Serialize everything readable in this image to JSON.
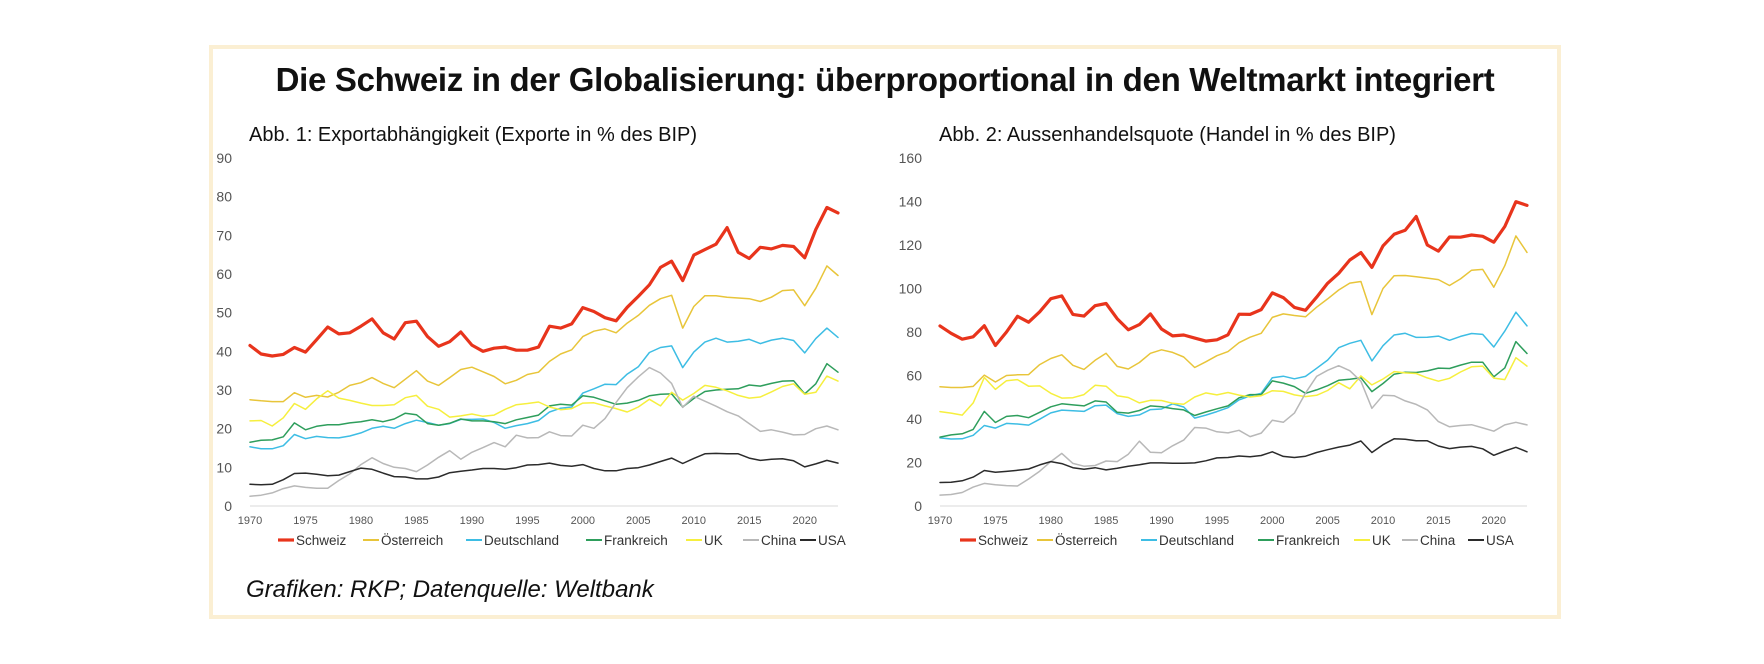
{
  "title": "Die Schweiz in der Globalisierung: überproportional in den Weltmarkt integriert",
  "footer": "Grafiken: RKP; Datenquelle: Weltbank",
  "chart_data": [
    {
      "type": "line",
      "title": "Abb. 1: Exportabhängigkeit (Exporte in % des BIP)",
      "xlabel": "",
      "ylabel": "",
      "x": [
        1970,
        1971,
        1972,
        1973,
        1974,
        1975,
        1976,
        1977,
        1978,
        1979,
        1980,
        1981,
        1982,
        1983,
        1984,
        1985,
        1986,
        1987,
        1988,
        1989,
        1990,
        1991,
        1992,
        1993,
        1994,
        1995,
        1996,
        1997,
        1998,
        1999,
        2000,
        2001,
        2002,
        2003,
        2004,
        2005,
        2006,
        2007,
        2008,
        2009,
        2010,
        2011,
        2012,
        2013,
        2014,
        2015,
        2016,
        2017,
        2018,
        2019,
        2020,
        2021,
        2022,
        2023
      ],
      "xticks": [
        "1970",
        "1975",
        "1980",
        "1985",
        "1990",
        "1995",
        "2000",
        "2005",
        "2010",
        "2015",
        "2020"
      ],
      "ylim": [
        0,
        90
      ],
      "yticks": [
        "0",
        "10",
        "20",
        "30",
        "40",
        "50",
        "60",
        "70",
        "80",
        "90"
      ],
      "legend_position": "bottom",
      "grid": false,
      "series": [
        {
          "name": "Schweiz",
          "color": "#e8341c",
          "width": 3.2,
          "values": [
            41.5,
            39.3,
            38.8,
            39.2,
            41.0,
            39.8,
            43.0,
            46.3,
            44.5,
            44.8,
            46.5,
            48.4,
            44.8,
            43.2,
            47.4,
            47.8,
            43.8,
            41.3,
            42.5,
            45.0,
            41.6,
            40.0,
            40.8,
            41.1,
            40.3,
            40.3,
            41.1,
            46.5,
            46.0,
            47.1,
            51.3,
            50.3,
            48.7,
            47.9,
            51.4,
            54.2,
            57.2,
            61.7,
            63.3,
            58.3,
            64.9,
            66.3,
            67.7,
            72.0,
            65.6,
            64.0,
            66.9,
            66.5,
            67.4,
            67.1,
            64.2,
            71.5,
            77.2,
            75.8
          ]
        },
        {
          "name": "Österreich",
          "color": "#e8c53a",
          "width": 1.5,
          "values": [
            27.5,
            27.2,
            27.0,
            27.0,
            29.3,
            28.1,
            28.6,
            28.2,
            29.4,
            31.2,
            31.9,
            33.2,
            31.7,
            30.6,
            32.8,
            35.0,
            32.3,
            31.2,
            33.2,
            35.3,
            35.9,
            34.7,
            33.5,
            31.6,
            32.5,
            34.0,
            34.6,
            37.4,
            39.3,
            40.4,
            43.8,
            45.2,
            45.8,
            44.8,
            47.3,
            49.3,
            51.9,
            53.6,
            54.5,
            46.0,
            51.6,
            54.4,
            54.4,
            54.0,
            53.8,
            53.6,
            52.9,
            54.0,
            55.7,
            55.9,
            51.8,
            56.3,
            62.1,
            59.6
          ]
        },
        {
          "name": "Deutschland",
          "color": "#3dbde4",
          "width": 1.5,
          "values": [
            15.3,
            14.8,
            14.8,
            15.6,
            18.5,
            17.4,
            18.0,
            17.7,
            17.6,
            18.1,
            18.9,
            20.1,
            20.6,
            20.1,
            21.3,
            22.2,
            21.6,
            20.9,
            21.3,
            22.4,
            22.4,
            22.5,
            21.6,
            20.1,
            20.8,
            21.3,
            22.1,
            24.3,
            25.3,
            25.6,
            29.2,
            30.3,
            31.5,
            31.4,
            34.1,
            36.0,
            39.7,
            41.0,
            41.4,
            35.8,
            39.8,
            42.4,
            43.4,
            42.4,
            42.6,
            43.1,
            42.0,
            42.9,
            43.4,
            42.8,
            39.6,
            43.3,
            46.0,
            43.6
          ]
        },
        {
          "name": "Frankreich",
          "color": "#2e9e5c",
          "width": 1.5,
          "values": [
            16.5,
            17.0,
            17.1,
            17.9,
            21.5,
            19.7,
            20.6,
            21.0,
            21.0,
            21.5,
            21.8,
            22.3,
            21.8,
            22.5,
            24.0,
            23.6,
            21.3,
            20.9,
            21.4,
            22.5,
            22.0,
            22.0,
            21.8,
            21.3,
            22.3,
            22.9,
            23.5,
            25.9,
            26.3,
            26.1,
            28.5,
            28.1,
            27.2,
            26.3,
            26.6,
            27.3,
            28.5,
            28.9,
            29.0,
            25.6,
            27.8,
            29.6,
            30.0,
            30.2,
            30.3,
            31.3,
            31.0,
            31.7,
            32.3,
            32.4,
            29.0,
            31.6,
            36.8,
            34.6
          ]
        },
        {
          "name": "UK",
          "color": "#f6ef3e",
          "width": 1.5,
          "values": [
            22.0,
            22.1,
            20.7,
            22.8,
            26.5,
            25.0,
            27.7,
            29.8,
            27.9,
            27.3,
            26.6,
            26.0,
            26.0,
            26.2,
            28.0,
            28.6,
            25.8,
            25.0,
            23.0,
            23.3,
            23.8,
            23.2,
            23.5,
            25.0,
            26.2,
            26.5,
            26.9,
            25.6,
            24.9,
            25.2,
            26.6,
            26.7,
            25.9,
            25.2,
            24.3,
            25.6,
            27.6,
            25.9,
            29.4,
            27.4,
            29.1,
            31.2,
            30.7,
            29.8,
            28.6,
            27.9,
            28.2,
            29.5,
            30.9,
            31.6,
            28.9,
            29.4,
            33.6,
            32.3
          ]
        },
        {
          "name": "China",
          "color": "#b8b8b8",
          "width": 1.5,
          "values": [
            2.5,
            2.8,
            3.4,
            4.5,
            5.2,
            4.8,
            4.6,
            4.6,
            6.6,
            8.3,
            10.7,
            12.5,
            11.0,
            10.0,
            9.7,
            8.9,
            10.6,
            12.6,
            14.3,
            12.1,
            13.9,
            15.1,
            16.4,
            15.3,
            18.3,
            17.6,
            17.7,
            19.2,
            18.2,
            18.1,
            20.9,
            20.1,
            22.6,
            26.8,
            30.6,
            33.4,
            35.8,
            34.4,
            31.7,
            25.5,
            28.4,
            27.1,
            25.8,
            24.4,
            23.3,
            21.3,
            19.3,
            19.7,
            19.1,
            18.4,
            18.5,
            20.0,
            20.7,
            19.7
          ]
        },
        {
          "name": "USA",
          "color": "#2b2b2b",
          "width": 1.5,
          "values": [
            5.6,
            5.5,
            5.6,
            6.8,
            8.4,
            8.5,
            8.2,
            7.8,
            8.0,
            8.9,
            9.8,
            9.5,
            8.5,
            7.6,
            7.5,
            7.0,
            7.0,
            7.5,
            8.6,
            9.0,
            9.3,
            9.7,
            9.7,
            9.5,
            9.9,
            10.6,
            10.7,
            11.1,
            10.5,
            10.3,
            10.7,
            9.7,
            9.1,
            9.1,
            9.7,
            9.9,
            10.6,
            11.5,
            12.4,
            11.0,
            12.3,
            13.5,
            13.6,
            13.5,
            13.5,
            12.4,
            11.8,
            12.1,
            12.2,
            11.7,
            10.1,
            10.9,
            11.8,
            11.1
          ]
        }
      ]
    },
    {
      "type": "line",
      "title": "Abb. 2: Aussenhandelsquote (Handel in % des BIP)",
      "xlabel": "",
      "ylabel": "",
      "x": [
        1970,
        1971,
        1972,
        1973,
        1974,
        1975,
        1976,
        1977,
        1978,
        1979,
        1980,
        1981,
        1982,
        1983,
        1984,
        1985,
        1986,
        1987,
        1988,
        1989,
        1990,
        1991,
        1992,
        1993,
        1994,
        1995,
        1996,
        1997,
        1998,
        1999,
        2000,
        2001,
        2002,
        2003,
        2004,
        2005,
        2006,
        2007,
        2008,
        2009,
        2010,
        2011,
        2012,
        2013,
        2014,
        2015,
        2016,
        2017,
        2018,
        2019,
        2020,
        2021,
        2022,
        2023
      ],
      "xticks": [
        "1970",
        "1975",
        "1980",
        "1985",
        "1990",
        "1995",
        "2000",
        "2005",
        "2010",
        "2015",
        "2020"
      ],
      "ylim": [
        0,
        160
      ],
      "yticks": [
        "0",
        "20",
        "40",
        "60",
        "80",
        "100",
        "120",
        "140",
        "160"
      ],
      "legend_position": "bottom",
      "grid": false,
      "series": [
        {
          "name": "Schweiz",
          "color": "#e8341c",
          "width": 3.2,
          "values": [
            82.8,
            79.4,
            76.7,
            77.8,
            82.9,
            73.8,
            80.0,
            87.2,
            84.5,
            89.3,
            95.3,
            96.6,
            88.1,
            87.3,
            92.1,
            93.1,
            86.1,
            81.0,
            83.4,
            88.3,
            81.4,
            78.2,
            78.6,
            77.2,
            75.8,
            76.4,
            78.7,
            88.2,
            88.1,
            90.3,
            98.0,
            95.8,
            91.3,
            90.0,
            96.0,
            102.4,
            107.0,
            113.1,
            116.5,
            109.7,
            119.6,
            124.9,
            126.8,
            133.1,
            120.0,
            117.2,
            123.7,
            123.6,
            124.6,
            124.0,
            121.3,
            128.5,
            139.9,
            138.2
          ]
        },
        {
          "name": "Österreich",
          "color": "#e8c53a",
          "width": 1.5,
          "values": [
            54.8,
            54.5,
            54.5,
            55.0,
            60.2,
            57.0,
            60.0,
            60.3,
            60.4,
            65.0,
            67.8,
            69.5,
            64.7,
            62.8,
            67.0,
            70.2,
            64.2,
            63.0,
            66.0,
            70.2,
            71.8,
            70.6,
            68.5,
            63.7,
            66.3,
            69.1,
            71.0,
            75.1,
            77.6,
            79.4,
            86.7,
            88.3,
            87.6,
            87.0,
            91.4,
            95.2,
            99.3,
            102.5,
            103.2,
            88.0,
            100.0,
            105.9,
            106.0,
            105.4,
            104.8,
            104.1,
            101.4,
            104.4,
            108.4,
            108.8,
            100.6,
            110.5,
            124.2,
            116.6
          ]
        },
        {
          "name": "Deutschland",
          "color": "#3dbde4",
          "width": 1.5,
          "values": [
            31.3,
            30.8,
            30.9,
            32.5,
            37.0,
            35.8,
            38.0,
            37.7,
            37.2,
            39.9,
            42.8,
            44.1,
            43.8,
            43.5,
            46.1,
            46.4,
            42.5,
            41.2,
            41.9,
            44.3,
            44.6,
            47.0,
            45.5,
            40.4,
            41.8,
            43.4,
            45.2,
            48.8,
            50.6,
            51.8,
            59.0,
            59.7,
            58.5,
            59.6,
            63.3,
            67.1,
            72.8,
            74.8,
            76.2,
            66.7,
            73.7,
            78.6,
            79.4,
            77.5,
            77.6,
            78.1,
            76.2,
            78.0,
            79.3,
            78.9,
            73.1,
            80.4,
            89.1,
            82.8
          ]
        },
        {
          "name": "Frankreich",
          "color": "#2e9e5c",
          "width": 1.5,
          "values": [
            31.7,
            32.7,
            33.2,
            35.2,
            43.5,
            38.4,
            41.2,
            41.6,
            40.6,
            43.1,
            45.6,
            47.0,
            46.5,
            46.0,
            48.3,
            47.8,
            43.1,
            42.7,
            43.9,
            46.0,
            45.6,
            44.8,
            44.2,
            41.6,
            43.2,
            44.7,
            46.0,
            49.7,
            51.2,
            51.2,
            57.5,
            56.5,
            54.9,
            51.8,
            53.4,
            55.3,
            57.8,
            58.3,
            59.0,
            52.6,
            56.3,
            60.6,
            61.5,
            61.4,
            62.1,
            63.4,
            63.2,
            64.8,
            66.1,
            66.1,
            59.4,
            63.5,
            75.6,
            70.1
          ]
        },
        {
          "name": "UK",
          "color": "#f6ef3e",
          "width": 1.5,
          "values": [
            43.4,
            42.7,
            41.8,
            47.4,
            59.1,
            53.6,
            57.6,
            58.1,
            55.1,
            55.2,
            51.8,
            49.6,
            49.8,
            51.2,
            55.5,
            55.1,
            50.7,
            49.9,
            47.4,
            48.6,
            48.5,
            47.2,
            46.8,
            50.1,
            52.0,
            51.1,
            52.2,
            51.0,
            50.1,
            50.7,
            53.0,
            52.7,
            51.1,
            50.3,
            50.9,
            53.1,
            56.7,
            53.9,
            59.8,
            55.7,
            58.4,
            61.8,
            61.2,
            60.9,
            58.9,
            57.4,
            58.7,
            61.6,
            64.0,
            64.3,
            58.8,
            58.1,
            68.2,
            64.3
          ]
        },
        {
          "name": "China",
          "color": "#b8b8b8",
          "width": 1.5,
          "values": [
            5.0,
            5.3,
            6.2,
            8.7,
            10.4,
            9.8,
            9.4,
            9.2,
            12.4,
            16.0,
            20.4,
            24.2,
            19.6,
            18.3,
            18.6,
            20.7,
            20.4,
            23.8,
            29.8,
            24.7,
            24.5,
            27.7,
            30.3,
            36.1,
            35.8,
            34.1,
            33.6,
            34.8,
            31.9,
            33.5,
            39.4,
            38.5,
            42.7,
            51.9,
            59.6,
            62.4,
            64.5,
            62.2,
            57.4,
            44.9,
            50.9,
            50.7,
            48.3,
            46.7,
            44.2,
            38.8,
            36.4,
            37.0,
            37.4,
            35.9,
            34.4,
            37.3,
            38.5,
            37.3
          ]
        },
        {
          "name": "USA",
          "color": "#2b2b2b",
          "width": 1.5,
          "values": [
            10.8,
            10.9,
            11.6,
            13.3,
            16.3,
            15.5,
            15.9,
            16.4,
            17.0,
            18.9,
            20.4,
            19.5,
            17.6,
            16.9,
            17.6,
            16.6,
            17.4,
            18.3,
            19.0,
            19.8,
            19.8,
            19.7,
            19.7,
            19.8,
            20.8,
            22.1,
            22.3,
            23.0,
            22.6,
            23.2,
            24.9,
            22.8,
            22.3,
            22.9,
            24.6,
            25.9,
            27.1,
            28.0,
            29.9,
            24.6,
            28.2,
            30.9,
            30.7,
            30.0,
            30.0,
            27.6,
            26.4,
            27.1,
            27.4,
            26.3,
            23.3,
            25.3,
            27.0,
            24.9
          ]
        }
      ]
    }
  ]
}
